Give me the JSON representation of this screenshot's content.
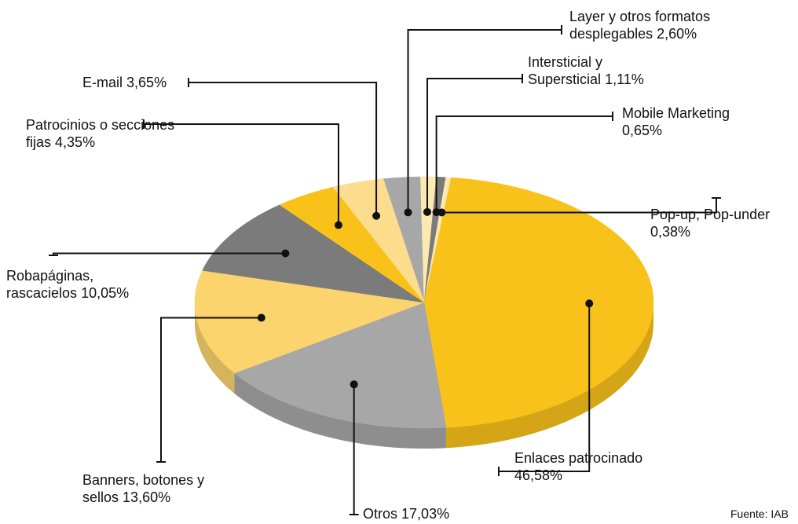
{
  "chart_data": {
    "type": "pie3d",
    "categories": [
      "Layer y otros formatos desplegables",
      "Intersticial y Supersticial",
      "Mobile Marketing",
      "Pop-up, Pop-under",
      "Enlaces patrocinado",
      "Otros",
      "Banners, botones y sellos",
      "Robapáginas, rascacielos",
      "Patrocinios o secciones fijas",
      "E-mail"
    ],
    "values": [
      2.6,
      1.11,
      0.65,
      0.38,
      46.58,
      17.03,
      13.6,
      10.05,
      4.35,
      3.65
    ],
    "value_labels": [
      "2,60%",
      "1,11%",
      "0,65%",
      "0,38%",
      "46,58%",
      "17,03%",
      "13,60%",
      "10,05%",
      "4,35%",
      "3,65%"
    ],
    "colors": [
      "#a7a7a7",
      "#fde9b0",
      "#7b7b7b",
      "#fde9b0",
      "#f9c21a",
      "#a7a7a7",
      "#fbd46e",
      "#7b7b7b",
      "#f9c21a",
      "#fcdd8e"
    ],
    "source": "Fuente: IAB"
  }
}
